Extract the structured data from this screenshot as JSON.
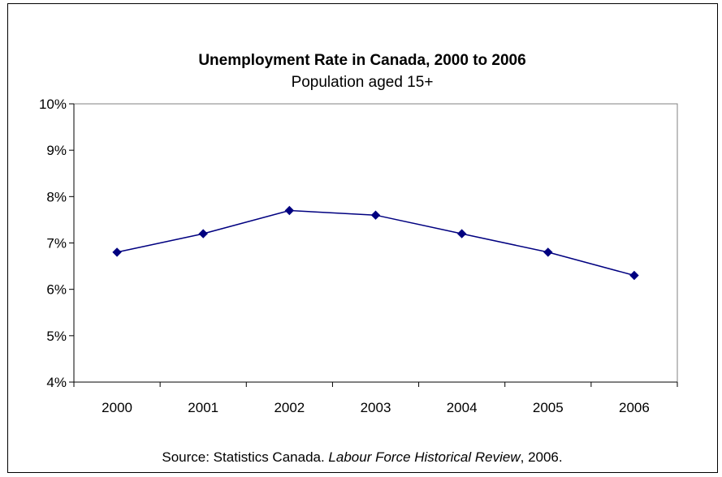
{
  "chart_data": {
    "type": "line",
    "title": "Unemployment Rate in Canada, 2000 to 2006",
    "subtitle": "Population aged 15+",
    "categories": [
      "2000",
      "2001",
      "2002",
      "2003",
      "2004",
      "2005",
      "2006"
    ],
    "series": [
      {
        "values": [
          6.8,
          7.2,
          7.7,
          7.6,
          7.2,
          6.8,
          6.3
        ],
        "color": "#000080",
        "marker": "diamond"
      }
    ],
    "ylim": [
      4,
      10
    ],
    "y_ticks": [
      "4%",
      "5%",
      "6%",
      "7%",
      "8%",
      "9%",
      "10%"
    ],
    "y_unit": "%",
    "grid": false,
    "legend": "none",
    "source": {
      "prefix": "Source: Statistics Canada. ",
      "publication": "Labour Force Historical Review",
      "suffix": ", 2006."
    }
  }
}
